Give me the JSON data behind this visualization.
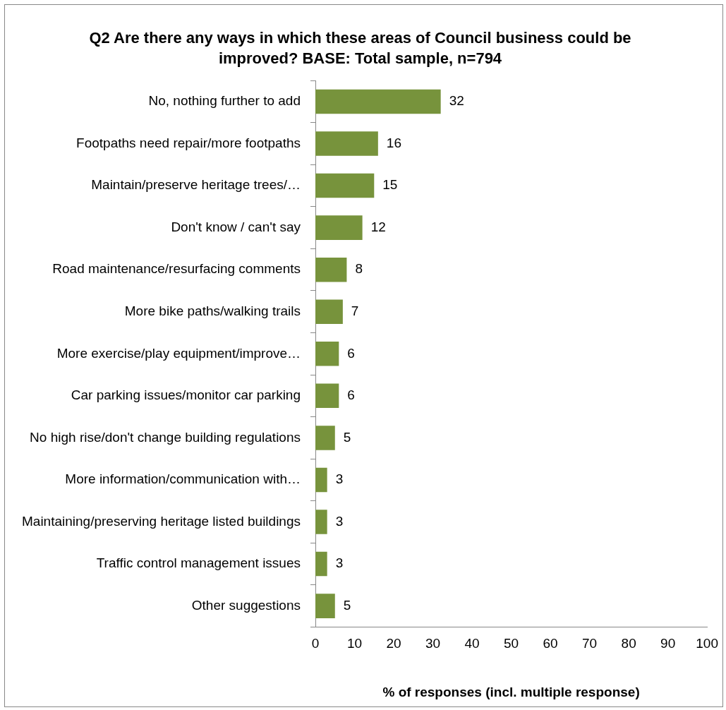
{
  "chart_data": {
    "type": "bar",
    "orientation": "horizontal",
    "title": "Q2 Are there any ways in which these areas of Council business could be improved? BASE: Total sample, n=794",
    "xlabel": "% of responses (incl. multiple response)",
    "categories": [
      "No, nothing further to add",
      "Footpaths need repair/more footpaths",
      "Maintain/preserve heritage trees/…",
      "Don't know / can't say",
      "Road maintenance/resurfacing comments",
      "More bike paths/walking trails",
      "More exercise/play equipment/improve…",
      "Car parking issues/monitor car parking",
      "No high rise/don't change building regulations",
      "More information/communication with…",
      "Maintaining/preserving heritage listed buildings",
      "Traffic control management issues",
      "Other suggestions"
    ],
    "values": [
      32,
      16,
      15,
      12,
      8,
      7,
      6,
      6,
      5,
      3,
      3,
      3,
      5
    ],
    "color": "#77933c",
    "xlim": [
      0,
      100
    ],
    "xticks": [
      0,
      10,
      20,
      30,
      40,
      50,
      60,
      70,
      80,
      90,
      100
    ],
    "grid": false,
    "legend": false,
    "data_labels": true
  }
}
